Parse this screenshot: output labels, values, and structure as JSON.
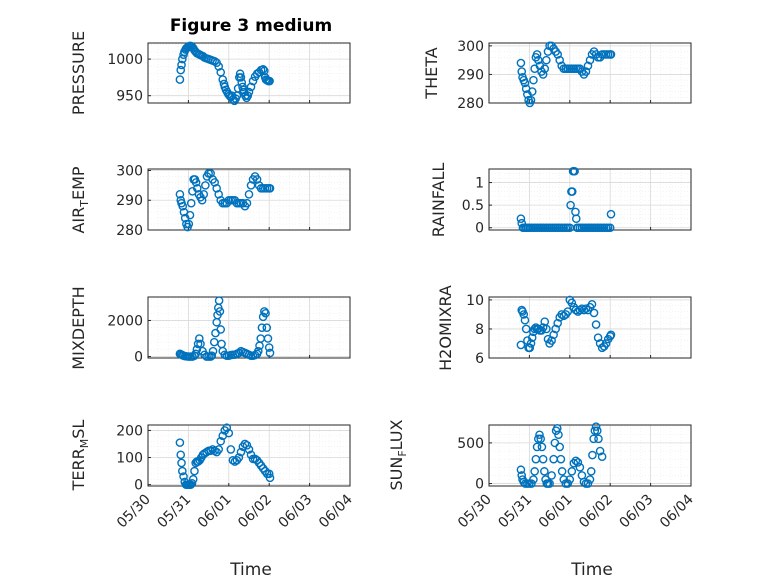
{
  "figure": {
    "background": "#ffffff",
    "marker_color": "#0072BD",
    "x_ticks": [
      "05/30",
      "05/31",
      "06/01",
      "06/02",
      "06/03",
      "06/04"
    ],
    "x_label": "Time"
  },
  "chart_data": [
    {
      "type": "scatter",
      "id": "pressure",
      "title": "Figure 3 medium",
      "ylabel": "PRESSURE",
      "ylim": [
        940,
        1022
      ],
      "yticks": [
        "950",
        "1000"
      ],
      "ytick_values": [
        950,
        1000
      ],
      "show_xticks": false,
      "xlim": [
        "05/30",
        "06/04"
      ],
      "grid": true,
      "x": [
        0.79,
        0.81,
        0.83,
        0.85,
        0.88,
        0.9,
        0.93,
        0.95,
        0.98,
        1.0,
        1.03,
        1.06,
        1.09,
        1.12,
        1.15,
        1.18,
        1.21,
        1.25,
        1.28,
        1.32,
        1.36,
        1.4,
        1.45,
        1.5,
        1.55,
        1.6,
        1.65,
        1.7,
        1.75,
        1.8,
        1.85,
        1.88,
        1.9,
        1.93,
        1.96,
        1.99,
        2.02,
        2.05,
        2.08,
        2.11,
        2.14,
        2.17,
        2.2,
        2.23,
        2.26,
        2.28,
        2.3,
        2.32,
        2.34,
        2.36,
        2.38,
        2.41,
        2.44,
        2.47,
        2.5,
        2.55,
        2.6,
        2.65,
        2.7,
        2.75,
        2.8,
        2.85,
        2.88,
        2.9,
        2.92,
        2.95,
        2.98,
        3.01
      ],
      "y": [
        972,
        985,
        992,
        1000,
        1006,
        1010,
        1013,
        1015,
        1016,
        1017,
        1018,
        1018,
        1017,
        1015,
        1012,
        1010,
        1008,
        1007,
        1006,
        1005,
        1004,
        1002,
        1001,
        1000,
        999,
        998,
        997,
        995,
        990,
        982,
        972,
        966,
        962,
        958,
        955,
        952,
        950,
        948,
        950,
        945,
        943,
        946,
        950,
        960,
        975,
        980,
        975,
        968,
        962,
        958,
        955,
        950,
        947,
        950,
        955,
        962,
        970,
        976,
        980,
        982,
        985,
        986,
        984,
        975,
        972,
        971,
        970,
        970
      ]
    },
    {
      "type": "scatter",
      "id": "theta",
      "title": "",
      "ylabel": "THETA",
      "ylim": [
        280,
        301
      ],
      "yticks": [
        "280",
        "290",
        "300"
      ],
      "ytick_values": [
        280,
        290,
        300
      ],
      "show_xticks": false,
      "xlim": [
        "05/30",
        "06/04"
      ],
      "grid": true,
      "x": [
        0.79,
        0.81,
        0.83,
        0.86,
        0.89,
        0.92,
        0.95,
        0.98,
        1.01,
        1.04,
        1.07,
        1.1,
        1.13,
        1.16,
        1.19,
        1.22,
        1.26,
        1.3,
        1.34,
        1.38,
        1.42,
        1.46,
        1.5,
        1.55,
        1.6,
        1.65,
        1.7,
        1.75,
        1.8,
        1.85,
        1.9,
        1.95,
        2.0,
        2.05,
        2.1,
        2.15,
        2.2,
        2.25,
        2.3,
        2.35,
        2.4,
        2.45,
        2.5,
        2.55,
        2.6,
        2.65,
        2.7,
        2.75,
        2.8,
        2.85,
        2.9,
        2.95,
        3.0,
        3.02
      ],
      "y": [
        294,
        291,
        289,
        288,
        287,
        285,
        283,
        281,
        280,
        281,
        284,
        288,
        292,
        296,
        297,
        295,
        293,
        291,
        290,
        292,
        295,
        298,
        300,
        300,
        299,
        298,
        297,
        295,
        293,
        292,
        292,
        292,
        292,
        292,
        292,
        292,
        292,
        292,
        291,
        290,
        291,
        293,
        295,
        297,
        298,
        297,
        296,
        296,
        297,
        297,
        297,
        297,
        297,
        297
      ]
    },
    {
      "type": "scatter",
      "id": "air_temp",
      "title": "",
      "ylabel": "AIR_TEMP",
      "ylim": [
        280,
        300.5
      ],
      "yticks": [
        "280",
        "290",
        "300"
      ],
      "ytick_values": [
        280,
        290,
        300
      ],
      "show_xticks": false,
      "xlim": [
        "05/30",
        "06/04"
      ],
      "grid": true,
      "x": [
        0.79,
        0.81,
        0.83,
        0.86,
        0.89,
        0.92,
        0.95,
        0.98,
        1.01,
        1.04,
        1.07,
        1.1,
        1.13,
        1.16,
        1.19,
        1.22,
        1.26,
        1.3,
        1.34,
        1.38,
        1.42,
        1.46,
        1.5,
        1.55,
        1.6,
        1.65,
        1.7,
        1.75,
        1.8,
        1.85,
        1.9,
        1.95,
        2.0,
        2.05,
        2.1,
        2.15,
        2.2,
        2.25,
        2.3,
        2.35,
        2.4,
        2.45,
        2.5,
        2.55,
        2.6,
        2.65,
        2.7,
        2.75,
        2.8,
        2.85,
        2.9,
        2.95,
        3.0,
        3.02
      ],
      "y": [
        292,
        290,
        289,
        288,
        286,
        284,
        282,
        281,
        282,
        285,
        289,
        293,
        297,
        297,
        296,
        294,
        292,
        291,
        290,
        292,
        295,
        298,
        299,
        299,
        297,
        296,
        294,
        292,
        290,
        289,
        289,
        289,
        290,
        290,
        290,
        290,
        289,
        289,
        289,
        289,
        288,
        289,
        292,
        295,
        297,
        298,
        297,
        295,
        294,
        294,
        294,
        294,
        294,
        294
      ]
    },
    {
      "type": "scatter",
      "id": "rainfall",
      "title": "",
      "ylabel": "RAINFALL",
      "ylim": [
        -0.05,
        1.3
      ],
      "yticks": [
        "0",
        "0.5",
        "1"
      ],
      "ytick_values": [
        0,
        0.5,
        1
      ],
      "show_xticks": false,
      "xlim": [
        "05/30",
        "06/04"
      ],
      "grid": true,
      "x": [
        0.79,
        0.81,
        0.84,
        0.88,
        0.92,
        0.96,
        1.0,
        1.05,
        1.1,
        1.15,
        1.2,
        1.25,
        1.3,
        1.35,
        1.4,
        1.45,
        1.5,
        1.55,
        1.6,
        1.65,
        1.7,
        1.75,
        1.8,
        1.85,
        1.9,
        1.95,
        2.0,
        2.02,
        2.04,
        2.06,
        2.08,
        2.1,
        2.12,
        2.14,
        2.16,
        2.18,
        2.2,
        2.25,
        2.3,
        2.35,
        2.4,
        2.45,
        2.5,
        2.55,
        2.6,
        2.65,
        2.7,
        2.75,
        2.8,
        2.85,
        2.9,
        2.95,
        3.0,
        3.02
      ],
      "y": [
        0.2,
        0.1,
        0.0,
        0.0,
        0.0,
        0.0,
        0.0,
        0.0,
        0.0,
        0.0,
        0.0,
        0.0,
        0.0,
        0.0,
        0.0,
        0.0,
        0.0,
        0.0,
        0.0,
        0.0,
        0.0,
        0.0,
        0.0,
        0.0,
        0.0,
        0.0,
        0.0,
        0.5,
        0.8,
        0.8,
        1.25,
        1.25,
        1.25,
        0.35,
        0.2,
        0.0,
        0.0,
        0.0,
        0.0,
        0.0,
        0.0,
        0.0,
        0.0,
        0.0,
        0.0,
        0.0,
        0.0,
        0.0,
        0.0,
        0.0,
        0.0,
        0.0,
        0.0,
        0.3
      ]
    },
    {
      "type": "scatter",
      "id": "mixdepth",
      "title": "",
      "ylabel": "MIXDEPTH",
      "ylim": [
        -80,
        3300
      ],
      "yticks": [
        "0",
        "2000"
      ],
      "ytick_values": [
        0,
        2000
      ],
      "show_xticks": false,
      "xlim": [
        "05/30",
        "06/04"
      ],
      "grid": true,
      "x": [
        0.79,
        0.82,
        0.85,
        0.88,
        0.92,
        0.96,
        1.0,
        1.05,
        1.1,
        1.15,
        1.18,
        1.21,
        1.24,
        1.27,
        1.3,
        1.35,
        1.4,
        1.45,
        1.5,
        1.55,
        1.58,
        1.61,
        1.64,
        1.67,
        1.7,
        1.72,
        1.74,
        1.76,
        1.78,
        1.8,
        1.82,
        1.85,
        1.9,
        1.95,
        2.0,
        2.05,
        2.1,
        2.15,
        2.2,
        2.25,
        2.3,
        2.35,
        2.4,
        2.45,
        2.5,
        2.55,
        2.6,
        2.65,
        2.7,
        2.73,
        2.76,
        2.79,
        2.82,
        2.85,
        2.88,
        2.91,
        2.94,
        2.97,
        3.0,
        3.02
      ],
      "y": [
        150,
        120,
        80,
        50,
        20,
        10,
        0,
        0,
        0,
        50,
        150,
        400,
        700,
        1000,
        700,
        300,
        100,
        0,
        0,
        0,
        50,
        300,
        800,
        1300,
        1900,
        2300,
        2700,
        3100,
        2500,
        1500,
        700,
        300,
        100,
        50,
        50,
        80,
        100,
        100,
        150,
        200,
        300,
        250,
        200,
        150,
        100,
        50,
        50,
        80,
        150,
        300,
        600,
        1000,
        1600,
        2200,
        2500,
        2400,
        1600,
        1000,
        500,
        200
      ]
    },
    {
      "type": "scatter",
      "id": "h2omixra",
      "title": "",
      "ylabel": "H2OMIXRA",
      "ylim": [
        6,
        10.2
      ],
      "yticks": [
        "6",
        "8",
        "10"
      ],
      "ytick_values": [
        6,
        8,
        10
      ],
      "show_xticks": false,
      "xlim": [
        "05/30",
        "06/04"
      ],
      "grid": true,
      "x": [
        0.79,
        0.81,
        0.83,
        0.86,
        0.89,
        0.92,
        0.95,
        0.98,
        1.01,
        1.04,
        1.07,
        1.1,
        1.13,
        1.16,
        1.19,
        1.22,
        1.26,
        1.3,
        1.34,
        1.38,
        1.42,
        1.46,
        1.5,
        1.55,
        1.6,
        1.65,
        1.7,
        1.75,
        1.8,
        1.85,
        1.9,
        1.95,
        2.0,
        2.05,
        2.1,
        2.15,
        2.2,
        2.25,
        2.3,
        2.35,
        2.4,
        2.45,
        2.5,
        2.55,
        2.6,
        2.65,
        2.7,
        2.75,
        2.8,
        2.85,
        2.9,
        2.95,
        3.0,
        3.02
      ],
      "y": [
        6.9,
        9.3,
        9.2,
        9.0,
        8.6,
        8.0,
        7.2,
        6.7,
        6.7,
        7.0,
        7.4,
        7.8,
        8.0,
        8.1,
        8.0,
        8.0,
        7.9,
        7.9,
        8.1,
        8.5,
        8.0,
        7.3,
        7.0,
        7.2,
        7.6,
        8.0,
        8.4,
        8.8,
        9.0,
        8.9,
        9.0,
        9.2,
        10.0,
        9.8,
        9.5,
        9.3,
        9.2,
        9.3,
        9.4,
        9.3,
        9.4,
        9.3,
        9.5,
        9.7,
        9.1,
        8.3,
        7.4,
        7.0,
        6.7,
        6.8,
        7.0,
        7.3,
        7.5,
        7.6
      ]
    },
    {
      "type": "scatter",
      "id": "terr_msl",
      "title": "",
      "ylabel": "TERR_MSL",
      "ylim": [
        -5,
        220
      ],
      "yticks": [
        "0",
        "100",
        "200"
      ],
      "ytick_values": [
        0,
        100,
        200
      ],
      "show_xticks": true,
      "xlim": [
        "05/30",
        "06/04"
      ],
      "grid": true,
      "x": [
        0.79,
        0.81,
        0.83,
        0.85,
        0.88,
        0.91,
        0.94,
        0.97,
        1.0,
        1.03,
        1.06,
        1.09,
        1.12,
        1.15,
        1.18,
        1.21,
        1.24,
        1.28,
        1.32,
        1.36,
        1.4,
        1.45,
        1.5,
        1.55,
        1.6,
        1.65,
        1.7,
        1.75,
        1.8,
        1.85,
        1.9,
        1.95,
        2.0,
        2.05,
        2.1,
        2.15,
        2.2,
        2.25,
        2.3,
        2.35,
        2.4,
        2.45,
        2.5,
        2.55,
        2.6,
        2.65,
        2.7,
        2.75,
        2.8,
        2.85,
        2.9,
        2.95,
        3.0,
        3.02
      ],
      "y": [
        155,
        110,
        80,
        50,
        30,
        10,
        0,
        0,
        0,
        0,
        0,
        5,
        20,
        50,
        80,
        85,
        85,
        90,
        100,
        110,
        115,
        120,
        125,
        125,
        130,
        125,
        120,
        130,
        160,
        180,
        200,
        210,
        190,
        130,
        90,
        85,
        90,
        100,
        120,
        140,
        150,
        145,
        130,
        110,
        95,
        95,
        90,
        80,
        70,
        60,
        50,
        40,
        40,
        25
      ]
    },
    {
      "type": "scatter",
      "id": "sun_flux",
      "title": "",
      "ylabel": "SUN_FLUX",
      "ylim": [
        -30,
        720
      ],
      "yticks": [
        "0",
        "500"
      ],
      "ytick_values": [
        0,
        500
      ],
      "show_xticks": true,
      "xlim": [
        "05/30",
        "06/04"
      ],
      "grid": true,
      "x": [
        0.79,
        0.81,
        0.83,
        0.86,
        0.9,
        0.95,
        1.0,
        1.05,
        1.1,
        1.13,
        1.16,
        1.19,
        1.22,
        1.25,
        1.28,
        1.31,
        1.34,
        1.37,
        1.4,
        1.43,
        1.46,
        1.5,
        1.55,
        1.6,
        1.63,
        1.66,
        1.69,
        1.72,
        1.75,
        1.78,
        1.81,
        1.85,
        1.9,
        1.95,
        2.0,
        2.05,
        2.1,
        2.15,
        2.2,
        2.25,
        2.3,
        2.35,
        2.4,
        2.45,
        2.5,
        2.53,
        2.56,
        2.59,
        2.62,
        2.65,
        2.68,
        2.71,
        2.75,
        2.8
      ],
      "y": [
        170,
        100,
        50,
        20,
        0,
        0,
        0,
        0,
        50,
        150,
        300,
        450,
        550,
        600,
        550,
        450,
        300,
        150,
        50,
        0,
        0,
        0,
        100,
        300,
        500,
        650,
        680,
        600,
        450,
        300,
        150,
        50,
        0,
        0,
        50,
        150,
        250,
        280,
        260,
        200,
        100,
        20,
        0,
        0,
        50,
        150,
        350,
        550,
        650,
        700,
        650,
        550,
        400,
        330
      ]
    }
  ]
}
